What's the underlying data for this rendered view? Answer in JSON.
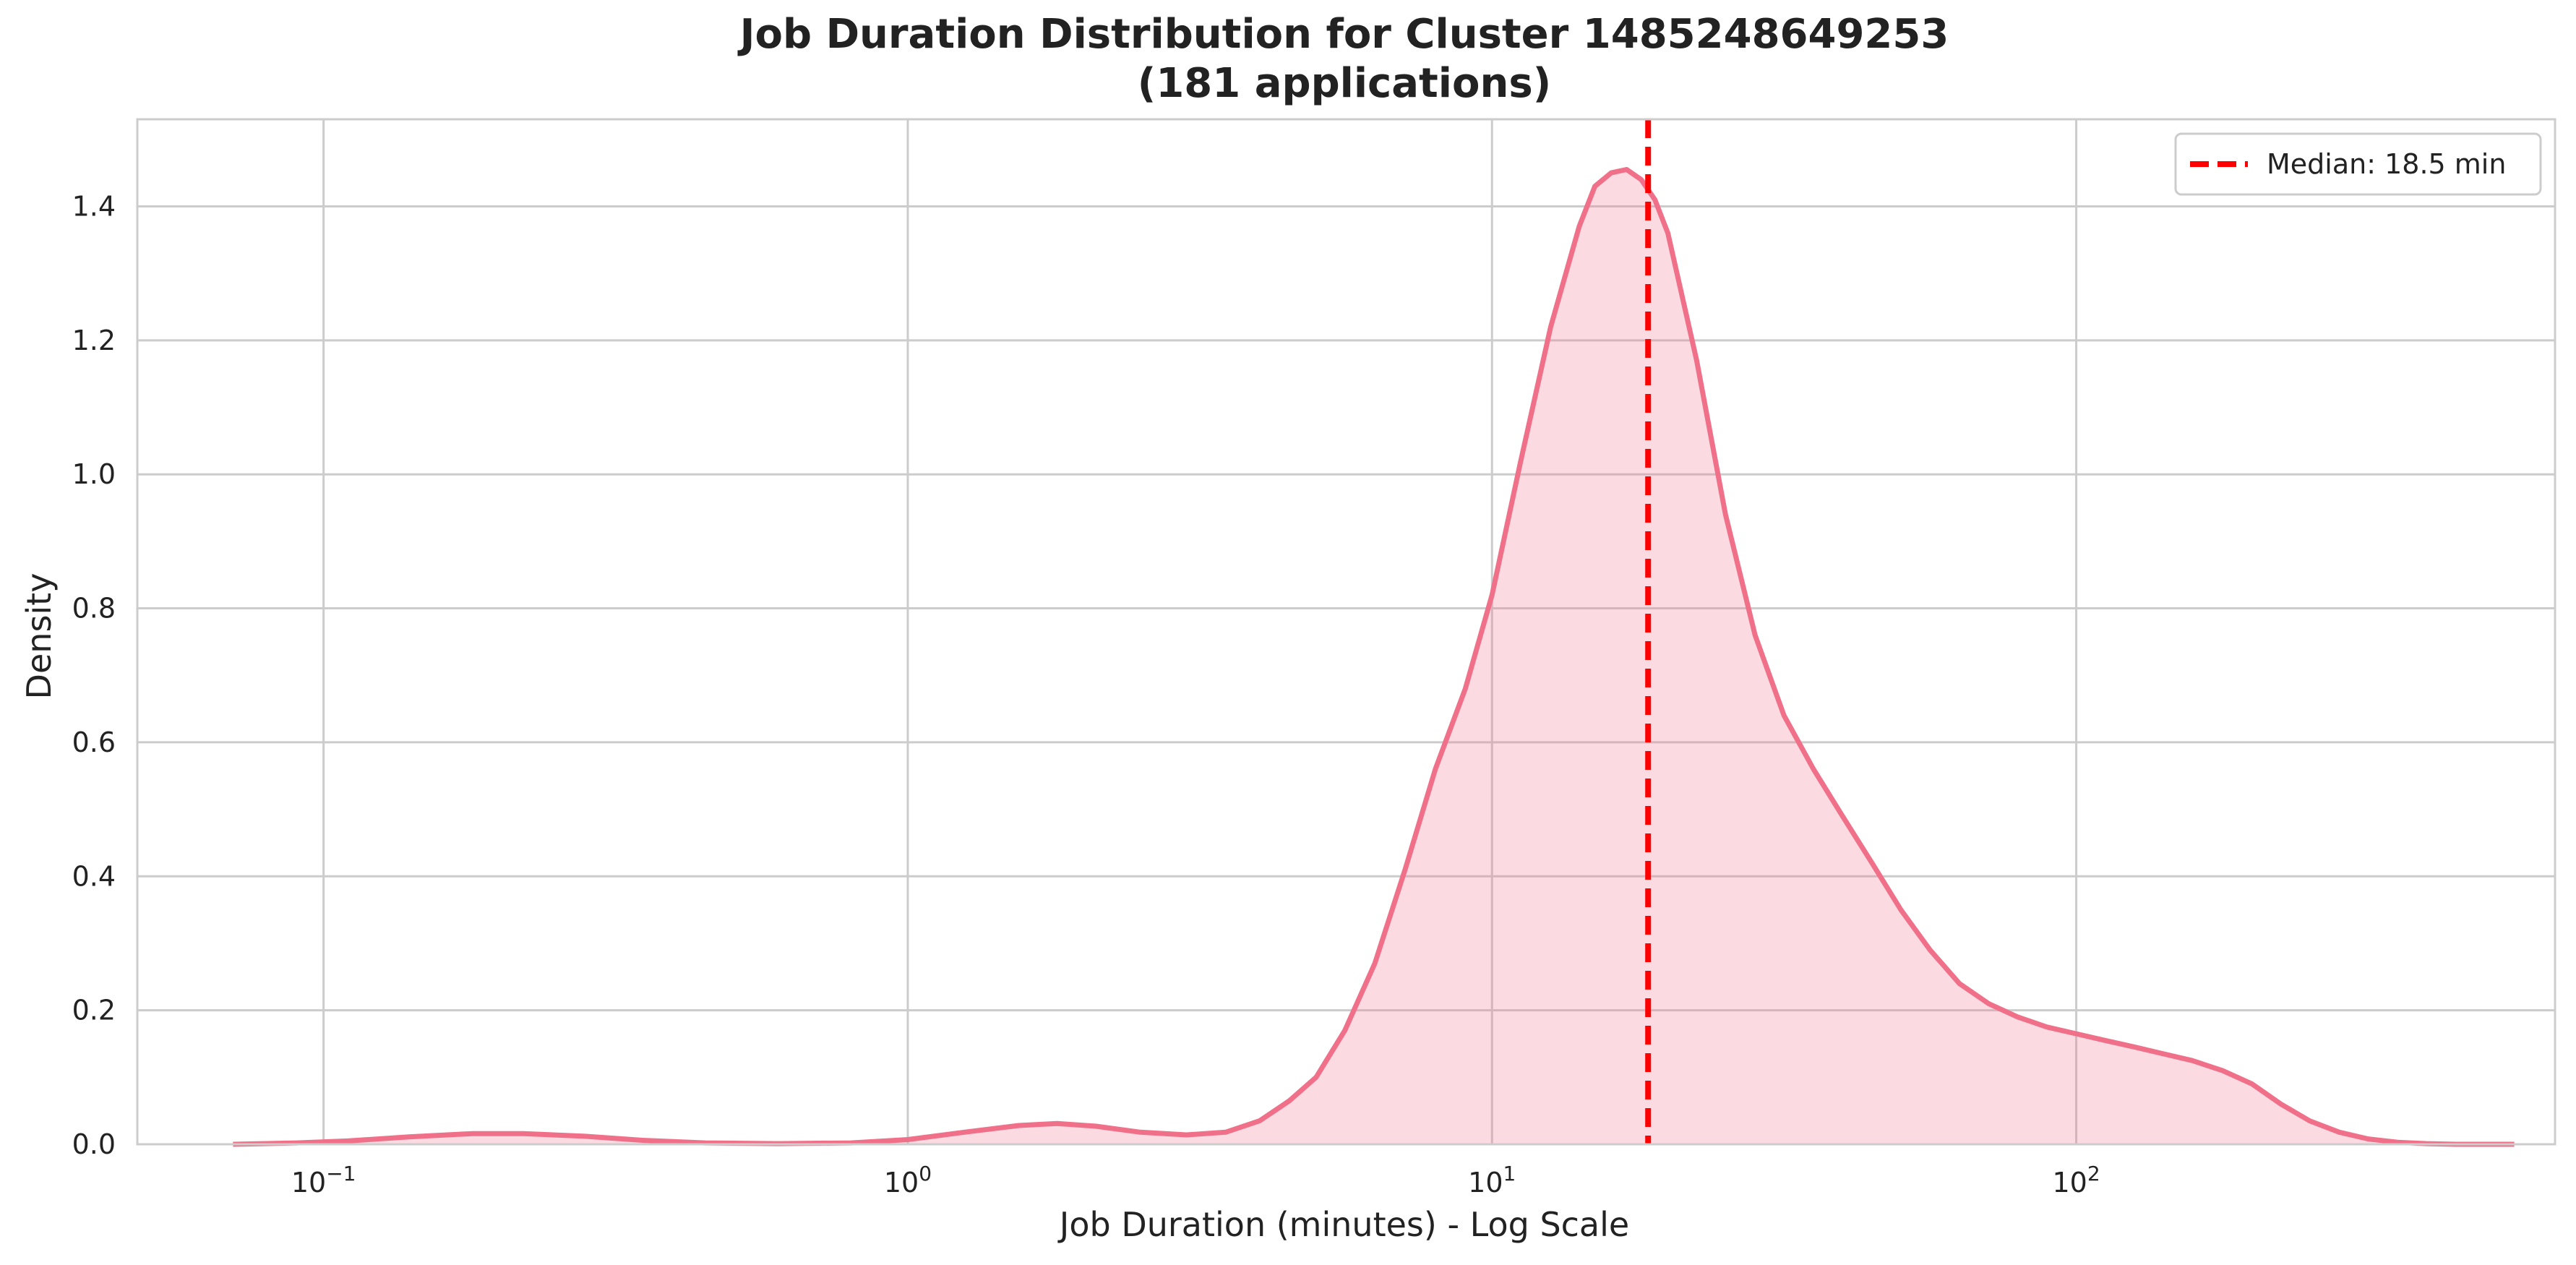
{
  "chart_data": {
    "type": "area",
    "title": "Job Duration Distribution for Cluster 1485248649253",
    "subtitle": "(181 applications)",
    "xlabel": "Job Duration (minutes) - Log Scale",
    "ylabel": "Density",
    "x_scale": "log",
    "xlim": [
      0.048,
      660
    ],
    "ylim": [
      0,
      1.53
    ],
    "x_ticks": [
      {
        "value": 0.1,
        "base": "10",
        "exp": "−1"
      },
      {
        "value": 1,
        "base": "10",
        "exp": "0"
      },
      {
        "value": 10,
        "base": "10",
        "exp": "1"
      },
      {
        "value": 100,
        "base": "10",
        "exp": "2"
      }
    ],
    "y_ticks": [
      "0.0",
      "0.2",
      "0.4",
      "0.6",
      "0.8",
      "1.0",
      "1.2",
      "1.4"
    ],
    "grid": true,
    "legend": {
      "position": "top-right",
      "label": "Median: 18.5 min"
    },
    "median": 18.5,
    "colors": {
      "line": "#f07089",
      "fill": "#f07089",
      "median": "#ff0000",
      "grid": "#cccccc",
      "spine": "#cccccc"
    },
    "series": [
      {
        "x": [
          0.07,
          0.09,
          0.11,
          0.14,
          0.18,
          0.22,
          0.28,
          0.35,
          0.45,
          0.6,
          0.8,
          1.0,
          1.25,
          1.55,
          1.8,
          2.1,
          2.5,
          3.0,
          3.5,
          4.0,
          4.5,
          5.0,
          5.6,
          6.3,
          7.1,
          8.0,
          9.0,
          10.0,
          11.2,
          12.6,
          14.1,
          15.0,
          16.0,
          17.0,
          18.0,
          19.0,
          20.0,
          22.4,
          25.1,
          28.2,
          31.6,
          35.5,
          39.8,
          44.7,
          50.1,
          56.2,
          63.1,
          70.8,
          79.4,
          89.1,
          100,
          112,
          126,
          141,
          158,
          178,
          200,
          224,
          251,
          282,
          316,
          355,
          398,
          447,
          501,
          562
        ],
        "y": [
          0.0,
          0.002,
          0.005,
          0.011,
          0.016,
          0.016,
          0.012,
          0.006,
          0.002,
          0.001,
          0.002,
          0.007,
          0.018,
          0.028,
          0.031,
          0.027,
          0.018,
          0.014,
          0.018,
          0.035,
          0.065,
          0.1,
          0.17,
          0.27,
          0.41,
          0.56,
          0.68,
          0.82,
          1.02,
          1.22,
          1.37,
          1.43,
          1.45,
          1.455,
          1.44,
          1.41,
          1.36,
          1.17,
          0.94,
          0.76,
          0.64,
          0.56,
          0.49,
          0.42,
          0.35,
          0.29,
          0.24,
          0.21,
          0.19,
          0.175,
          0.165,
          0.155,
          0.145,
          0.135,
          0.125,
          0.11,
          0.09,
          0.06,
          0.035,
          0.018,
          0.008,
          0.003,
          0.001,
          0.0,
          0.0,
          0.0
        ]
      }
    ]
  }
}
